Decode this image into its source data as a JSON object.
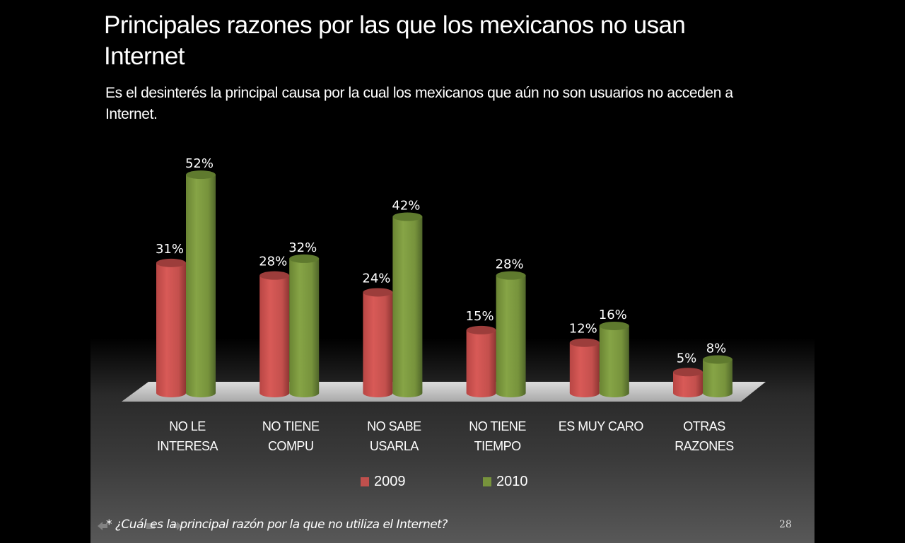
{
  "slide": {
    "title": "Principales razones por las que los mexicanos no usan Internet",
    "subtitle": "Es el desinterés la principal causa por la cual los mexicanos que aún no son usuarios no acceden a Internet.",
    "footnote": "* ¿Cuál es la principal razón por la que no utiliza el Internet?",
    "page_number": "28",
    "nav_icons": [
      "previous-slide-icon",
      "menu-icon",
      "next-slide-icon"
    ]
  },
  "colors": {
    "series_2009": "#c0504d",
    "series_2010": "#77933c",
    "floor": "#c8c8c8"
  },
  "chart_data": {
    "type": "bar",
    "style": "3d-cylinder",
    "title": "",
    "xlabel": "",
    "ylabel": "",
    "ylim": [
      0,
      55
    ],
    "grid": false,
    "legend_position": "bottom",
    "categories": [
      [
        "NO LE",
        "INTERESA"
      ],
      [
        "NO TIENE",
        "COMPU"
      ],
      [
        "NO SABE",
        "USARLA"
      ],
      [
        "NO TIENE",
        "TIEMPO"
      ],
      [
        "ES MUY CARO"
      ],
      [
        "OTRAS",
        "RAZONES"
      ]
    ],
    "series": [
      {
        "name": "2009",
        "values": [
          31,
          28,
          24,
          15,
          12,
          5
        ],
        "labels": [
          "31%",
          "28%",
          "24%",
          "15%",
          "12%",
          "5%"
        ]
      },
      {
        "name": "2010",
        "values": [
          52,
          32,
          42,
          28,
          16,
          8
        ],
        "labels": [
          "52%",
          "32%",
          "42%",
          "28%",
          "16%",
          "8%"
        ]
      }
    ]
  }
}
